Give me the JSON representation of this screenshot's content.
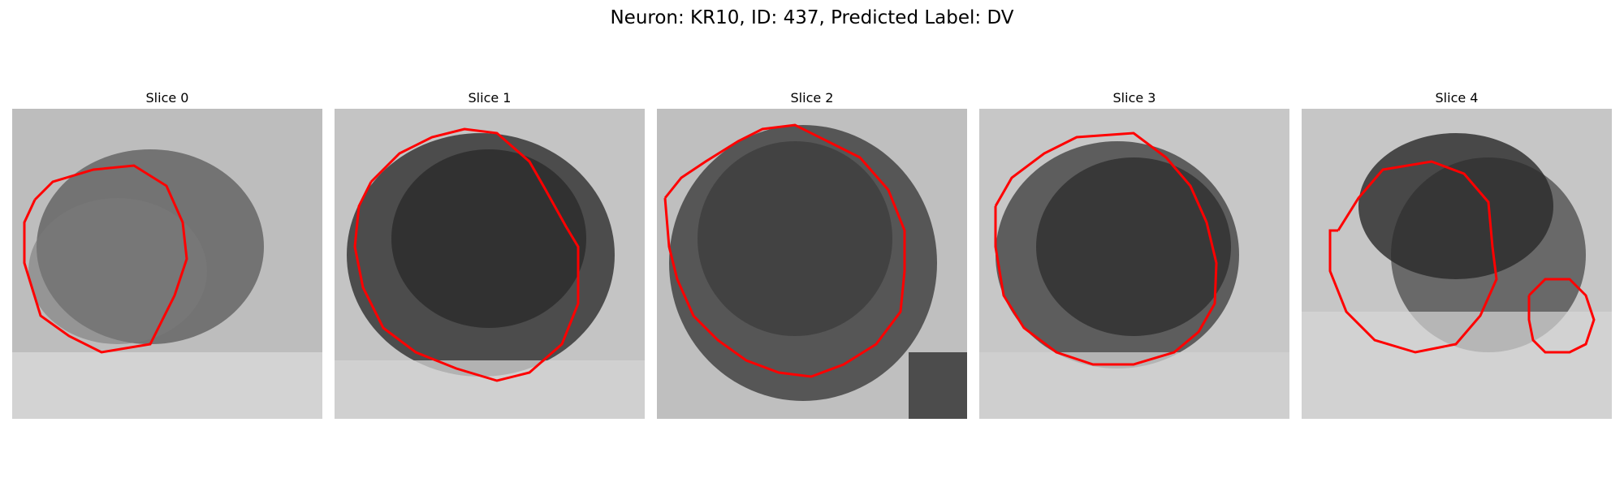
{
  "figure": {
    "title": "Neuron: KR10, ID: 437, Predicted Label: DV"
  },
  "panels": [
    {
      "title": "Slice 0",
      "contour": "red outline"
    },
    {
      "title": "Slice 1",
      "contour": "red outline"
    },
    {
      "title": "Slice 2",
      "contour": "red outline"
    },
    {
      "title": "Slice 3",
      "contour": "red outline"
    },
    {
      "title": "Slice 4",
      "contour": "red outline"
    }
  ],
  "colors": {
    "contour": "#ff0000",
    "background": "#ffffff"
  }
}
